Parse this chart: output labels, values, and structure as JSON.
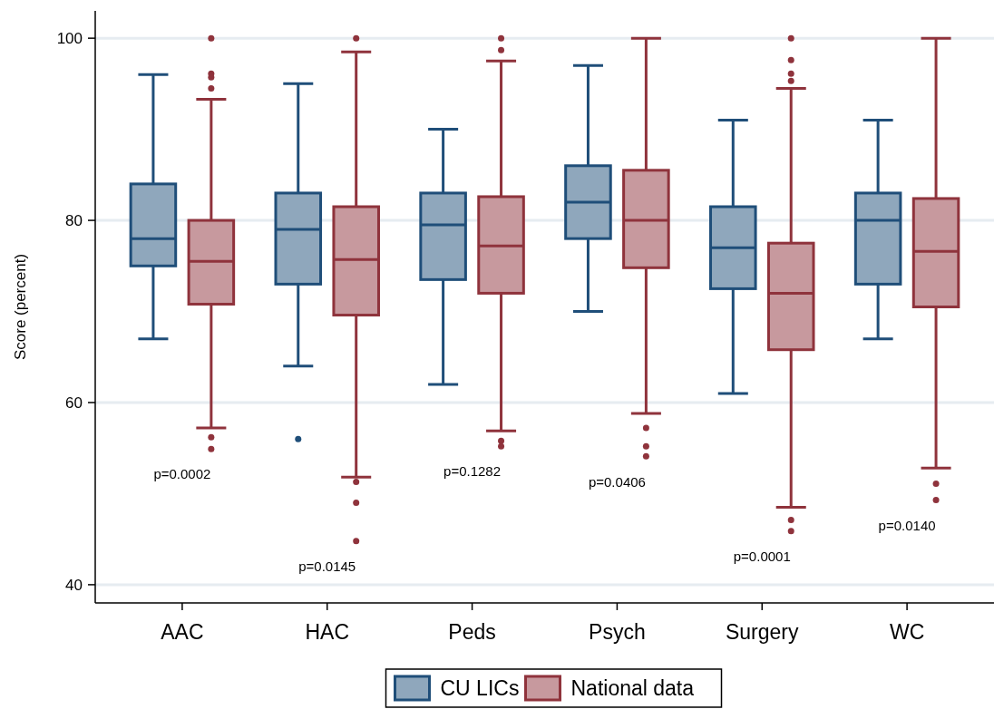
{
  "chart_data": {
    "type": "box",
    "ylabel": "Score (percent)",
    "categories": [
      "AAC",
      "HAC",
      "Peds",
      "Psych",
      "Surgery",
      "WC"
    ],
    "ylim": [
      38,
      103
    ],
    "yticks": [
      40,
      60,
      80,
      100
    ],
    "grid": "y",
    "legend": "bottom",
    "series": [
      {
        "name": "CU LICs",
        "color": "#1f4e79",
        "boxes": [
          {
            "low": 67,
            "q1": 75,
            "median": 78,
            "q3": 84,
            "high": 96
          },
          {
            "low": 64,
            "q1": 73,
            "median": 79,
            "q3": 83,
            "high": 95,
            "outliers": [
              56
            ]
          },
          {
            "low": 62,
            "q1": 73.5,
            "median": 79.5,
            "q3": 83,
            "high": 90
          },
          {
            "low": 70,
            "q1": 78,
            "median": 82,
            "q3": 86,
            "high": 97
          },
          {
            "low": 61,
            "q1": 72.5,
            "median": 77,
            "q3": 81.5,
            "high": 91
          },
          {
            "low": 67,
            "q1": 73,
            "median": 80,
            "q3": 83,
            "high": 91
          }
        ]
      },
      {
        "name": "National data",
        "color": "#8f333c",
        "boxes": [
          {
            "low": 57.2,
            "q1": 70.8,
            "median": 75.5,
            "q3": 80,
            "high": 93.3,
            "outliers": [
              100,
              96.1,
              95.7,
              94.5,
              56.2,
              54.9
            ]
          },
          {
            "low": 51.8,
            "q1": 69.6,
            "median": 75.7,
            "q3": 81.5,
            "high": 98.5,
            "outliers": [
              100,
              51.3,
              49,
              44.8
            ]
          },
          {
            "low": 56.9,
            "q1": 72,
            "median": 77.2,
            "q3": 82.6,
            "high": 97.5,
            "outliers": [
              100,
              98.7,
              55.8,
              55.2
            ]
          },
          {
            "low": 58.8,
            "q1": 74.8,
            "median": 80,
            "q3": 85.5,
            "high": 100,
            "outliers": [
              57.2,
              55.2,
              54.1
            ]
          },
          {
            "low": 48.5,
            "q1": 65.8,
            "median": 72,
            "q3": 77.5,
            "high": 94.5,
            "outliers": [
              100,
              97.6,
              96.1,
              95.3,
              47.1,
              45.9
            ]
          },
          {
            "low": 52.8,
            "q1": 70.5,
            "median": 76.6,
            "q3": 82.4,
            "high": 100,
            "outliers": [
              51.1,
              49.3
            ]
          }
        ]
      }
    ],
    "annotations": [
      "p=0.0002",
      "p=0.0145",
      "p=0.1282",
      "p=0.0406",
      "p=0.0001",
      "p=0.0140"
    ]
  }
}
